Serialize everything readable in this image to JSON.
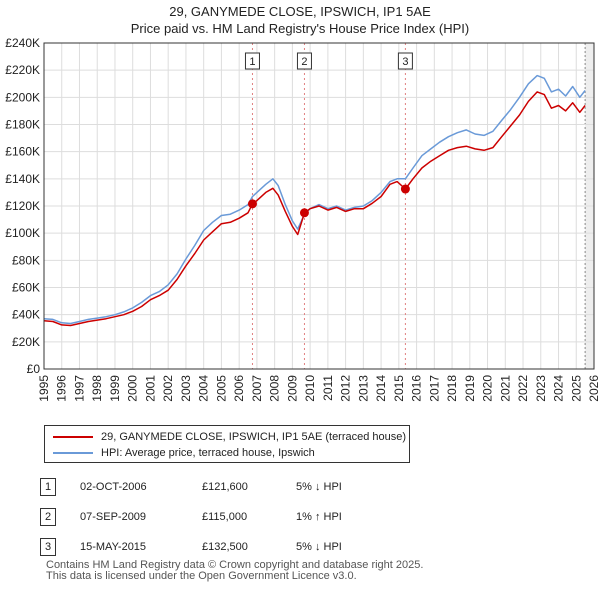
{
  "title_line1": "29, GANYMEDE CLOSE, IPSWICH, IP1 5AE",
  "title_line2": "Price paid vs. HM Land Registry's House Price Index (HPI)",
  "chart_data": {
    "type": "line",
    "xlim": [
      1995,
      2026
    ],
    "ylim": [
      0,
      240000
    ],
    "yticks": [
      0,
      20000,
      40000,
      60000,
      80000,
      100000,
      120000,
      140000,
      160000,
      180000,
      200000,
      220000,
      240000
    ],
    "ytick_labels": [
      "£0",
      "£20K",
      "£40K",
      "£60K",
      "£80K",
      "£100K",
      "£120K",
      "£140K",
      "£160K",
      "£180K",
      "£200K",
      "£220K",
      "£240K"
    ],
    "xticks": [
      1995,
      1996,
      1997,
      1998,
      1999,
      2000,
      2001,
      2002,
      2003,
      2004,
      2005,
      2006,
      2007,
      2008,
      2009,
      2010,
      2011,
      2012,
      2013,
      2014,
      2015,
      2016,
      2017,
      2018,
      2019,
      2020,
      2021,
      2022,
      2023,
      2024,
      2025,
      2026
    ],
    "series": [
      {
        "name": "29, GANYMEDE CLOSE, IPSWICH, IP1 5AE (terraced house)",
        "color": "#cc0000",
        "points": [
          [
            1995.0,
            35500
          ],
          [
            1995.5,
            35000
          ],
          [
            1996.0,
            32500
          ],
          [
            1996.5,
            32000
          ],
          [
            1997.0,
            33500
          ],
          [
            1997.5,
            35000
          ],
          [
            1998.0,
            36000
          ],
          [
            1998.5,
            37000
          ],
          [
            1999.0,
            38500
          ],
          [
            1999.5,
            40000
          ],
          [
            2000.0,
            42500
          ],
          [
            2000.5,
            46000
          ],
          [
            2001.0,
            51000
          ],
          [
            2001.5,
            54000
          ],
          [
            2002.0,
            58000
          ],
          [
            2002.5,
            66000
          ],
          [
            2003.0,
            76000
          ],
          [
            2003.5,
            85000
          ],
          [
            2004.0,
            95000
          ],
          [
            2004.5,
            101000
          ],
          [
            2005.0,
            107000
          ],
          [
            2005.5,
            108000
          ],
          [
            2006.0,
            111000
          ],
          [
            2006.5,
            115000
          ],
          [
            2006.75,
            121600
          ],
          [
            2007.0,
            124000
          ],
          [
            2007.5,
            130000
          ],
          [
            2007.9,
            133000
          ],
          [
            2008.2,
            128000
          ],
          [
            2008.6,
            116000
          ],
          [
            2009.0,
            105000
          ],
          [
            2009.3,
            99000
          ],
          [
            2009.68,
            115000
          ],
          [
            2010.0,
            118000
          ],
          [
            2010.5,
            120000
          ],
          [
            2011.0,
            117000
          ],
          [
            2011.5,
            119000
          ],
          [
            2012.0,
            116000
          ],
          [
            2012.5,
            118000
          ],
          [
            2013.0,
            118000
          ],
          [
            2013.5,
            122000
          ],
          [
            2014.0,
            127000
          ],
          [
            2014.5,
            136000
          ],
          [
            2014.9,
            138000
          ],
          [
            2015.37,
            132500
          ],
          [
            2015.8,
            140000
          ],
          [
            2016.3,
            148000
          ],
          [
            2016.8,
            153000
          ],
          [
            2017.3,
            157000
          ],
          [
            2017.8,
            161000
          ],
          [
            2018.3,
            163000
          ],
          [
            2018.8,
            164000
          ],
          [
            2019.3,
            162000
          ],
          [
            2019.8,
            161000
          ],
          [
            2020.3,
            163000
          ],
          [
            2020.8,
            171000
          ],
          [
            2021.3,
            179000
          ],
          [
            2021.8,
            187000
          ],
          [
            2022.3,
            197000
          ],
          [
            2022.8,
            204000
          ],
          [
            2023.2,
            202000
          ],
          [
            2023.6,
            192000
          ],
          [
            2024.0,
            194000
          ],
          [
            2024.4,
            190000
          ],
          [
            2024.8,
            196000
          ],
          [
            2025.2,
            189000
          ],
          [
            2025.5,
            194000
          ]
        ]
      },
      {
        "name": "HPI: Average price, terraced house, Ipswich",
        "color": "#6a9ad8",
        "points": [
          [
            1995.0,
            37000
          ],
          [
            1995.5,
            36500
          ],
          [
            1996.0,
            34000
          ],
          [
            1996.5,
            33500
          ],
          [
            1997.0,
            35000
          ],
          [
            1997.5,
            36500
          ],
          [
            1998.0,
            37500
          ],
          [
            1998.5,
            38500
          ],
          [
            1999.0,
            40000
          ],
          [
            1999.5,
            42000
          ],
          [
            2000.0,
            45000
          ],
          [
            2000.5,
            49000
          ],
          [
            2001.0,
            54000
          ],
          [
            2001.5,
            57000
          ],
          [
            2002.0,
            62000
          ],
          [
            2002.5,
            70000
          ],
          [
            2003.0,
            81000
          ],
          [
            2003.5,
            91000
          ],
          [
            2004.0,
            102000
          ],
          [
            2004.5,
            108000
          ],
          [
            2005.0,
            113000
          ],
          [
            2005.5,
            114000
          ],
          [
            2006.0,
            117000
          ],
          [
            2006.5,
            121000
          ],
          [
            2006.75,
            127000
          ],
          [
            2007.0,
            130000
          ],
          [
            2007.5,
            136000
          ],
          [
            2007.9,
            140000
          ],
          [
            2008.2,
            135000
          ],
          [
            2008.6,
            121000
          ],
          [
            2009.0,
            109000
          ],
          [
            2009.3,
            103000
          ],
          [
            2009.68,
            114000
          ],
          [
            2010.0,
            118000
          ],
          [
            2010.5,
            121000
          ],
          [
            2011.0,
            118000
          ],
          [
            2011.5,
            120000
          ],
          [
            2012.0,
            117000
          ],
          [
            2012.5,
            119000
          ],
          [
            2013.0,
            120000
          ],
          [
            2013.5,
            124000
          ],
          [
            2014.0,
            130000
          ],
          [
            2014.5,
            138000
          ],
          [
            2014.9,
            140000
          ],
          [
            2015.37,
            140000
          ],
          [
            2015.8,
            148000
          ],
          [
            2016.3,
            157000
          ],
          [
            2016.8,
            162000
          ],
          [
            2017.3,
            167000
          ],
          [
            2017.8,
            171000
          ],
          [
            2018.3,
            174000
          ],
          [
            2018.8,
            176000
          ],
          [
            2019.3,
            173000
          ],
          [
            2019.8,
            172000
          ],
          [
            2020.3,
            175000
          ],
          [
            2020.8,
            183000
          ],
          [
            2021.3,
            191000
          ],
          [
            2021.8,
            200000
          ],
          [
            2022.3,
            210000
          ],
          [
            2022.8,
            216000
          ],
          [
            2023.2,
            214000
          ],
          [
            2023.6,
            204000
          ],
          [
            2024.0,
            206000
          ],
          [
            2024.4,
            201000
          ],
          [
            2024.8,
            208000
          ],
          [
            2025.2,
            200000
          ],
          [
            2025.5,
            205000
          ]
        ]
      }
    ],
    "markers": [
      {
        "label": "1",
        "x": 2006.75,
        "y": 121600
      },
      {
        "label": "2",
        "x": 2009.68,
        "y": 115000
      },
      {
        "label": "3",
        "x": 2015.37,
        "y": 132500
      }
    ],
    "shaded_future_from": 2025.5
  },
  "legend": {
    "item1": "29, GANYMEDE CLOSE, IPSWICH, IP1 5AE (terraced house)",
    "item2": "HPI: Average price, terraced house, Ipswich",
    "color1": "#cc0000",
    "color2": "#6a9ad8"
  },
  "transactions": [
    {
      "num": "1",
      "date": "02-OCT-2006",
      "price": "£121,600",
      "hpi": "5% ↓ HPI"
    },
    {
      "num": "2",
      "date": "07-SEP-2009",
      "price": "£115,000",
      "hpi": "1% ↑ HPI"
    },
    {
      "num": "3",
      "date": "15-MAY-2015",
      "price": "£132,500",
      "hpi": "5% ↓ HPI"
    }
  ],
  "footer_line1": "Contains HM Land Registry data © Crown copyright and database right 2025.",
  "footer_line2": "This data is licensed under the Open Government Licence v3.0."
}
